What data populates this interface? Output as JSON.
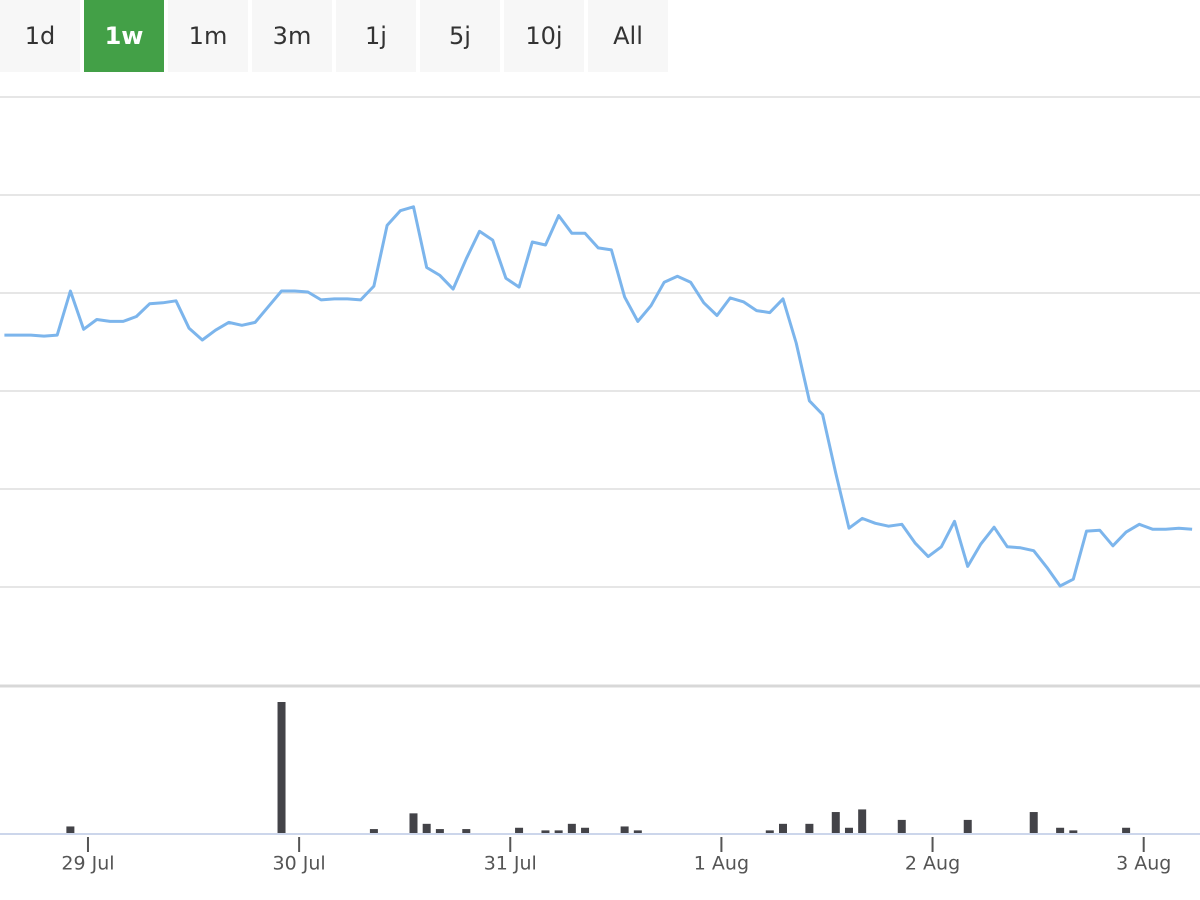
{
  "range_buttons": [
    "1d",
    "1w",
    "1m",
    "3m",
    "1j",
    "5j",
    "10j",
    "All"
  ],
  "selected_index": 1,
  "chart_data": [
    {
      "type": "line",
      "color": "#7cb5ec",
      "x": [
        -9.5,
        -8,
        -6.5,
        -5,
        -3.5,
        -2,
        -0.5,
        1,
        2.5,
        4,
        5.5,
        7,
        8.5,
        10,
        11.5,
        13,
        14.5,
        16,
        17.5,
        19,
        20.5,
        22,
        23.5,
        25,
        26.5,
        28,
        29.5,
        31,
        32.5,
        34,
        35.5,
        37,
        38.5,
        40,
        41.5,
        43,
        44.5,
        46,
        47.5,
        49,
        50.5,
        52,
        53.5,
        55,
        56.5,
        58,
        59.5,
        61,
        62.5,
        64,
        65.5,
        67,
        68.5,
        70,
        71.5,
        73,
        74.5,
        76,
        77.5,
        79,
        80.5,
        82,
        83.5,
        85,
        86.5,
        88,
        89.5,
        91,
        92.5,
        94,
        95.5,
        97,
        98.5,
        100,
        101.5,
        103,
        104.5,
        106,
        107.5,
        109,
        110.5,
        112,
        113.5,
        115,
        116.5,
        118,
        119.5,
        121,
        122.5,
        124,
        125.5
      ],
      "values": [
        3.57,
        3.57,
        3.57,
        3.56,
        3.57,
        4.02,
        3.63,
        3.73,
        3.71,
        3.71,
        3.76,
        3.89,
        3.9,
        3.92,
        3.64,
        3.52,
        3.62,
        3.7,
        3.67,
        3.7,
        3.86,
        4.02,
        4.02,
        4.01,
        3.93,
        3.94,
        3.94,
        3.93,
        4.07,
        4.69,
        4.84,
        4.88,
        4.26,
        4.18,
        4.04,
        4.35,
        4.63,
        4.54,
        4.15,
        4.06,
        4.52,
        4.49,
        4.79,
        4.61,
        4.61,
        4.46,
        4.44,
        3.96,
        3.71,
        3.87,
        4.11,
        4.17,
        4.11,
        3.9,
        3.77,
        3.95,
        3.91,
        3.82,
        3.8,
        3.94,
        3.49,
        2.9,
        2.76,
        2.16,
        1.6,
        1.7,
        1.65,
        1.62,
        1.64,
        1.45,
        1.31,
        1.41,
        1.67,
        1.21,
        1.44,
        1.61,
        1.41,
        1.4,
        1.37,
        1.2,
        1.01,
        1.08,
        1.57,
        1.58,
        1.42,
        1.56,
        1.64,
        1.59,
        1.59,
        1.6,
        1.59
      ],
      "xlim": [
        -10,
        126.4
      ],
      "ylim": [
        0,
        6
      ],
      "yticks": [
        1,
        2,
        3,
        4,
        5,
        6
      ],
      "grid": true
    },
    {
      "type": "bar",
      "color": "#434348",
      "x": [
        -2,
        22,
        32.5,
        37,
        38.5,
        40,
        43,
        49,
        52,
        53.5,
        55,
        56.5,
        61,
        62.5,
        77.5,
        79,
        82,
        85,
        86.5,
        88,
        92.5,
        100,
        107.5,
        110.5,
        112,
        118
      ],
      "values": [
        5,
        100,
        3,
        15,
        7,
        3,
        3,
        4,
        2,
        2,
        7,
        4,
        5,
        2,
        2,
        7,
        7,
        16,
        4,
        18,
        10,
        10,
        16,
        4,
        2,
        4
      ],
      "xlim": [
        -10,
        126.4
      ],
      "ylim": [
        0,
        100
      ],
      "xticks": [
        {
          "value": 0,
          "label": "29 Jul"
        },
        {
          "value": 24,
          "label": "30 Jul"
        },
        {
          "value": 48,
          "label": "31 Jul"
        },
        {
          "value": 72,
          "label": "1 Aug"
        },
        {
          "value": 96,
          "label": "2 Aug"
        },
        {
          "value": 120,
          "label": "3 Aug"
        }
      ]
    }
  ]
}
